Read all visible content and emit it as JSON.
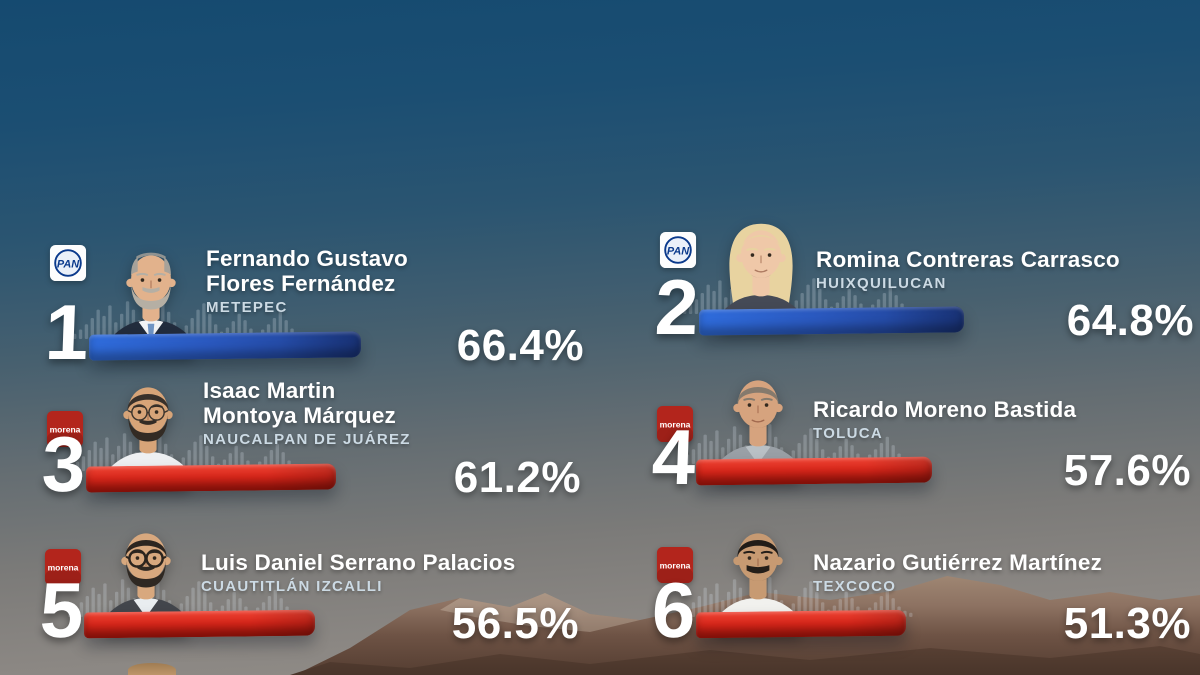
{
  "background_colors": {
    "sky_top": "#154a70",
    "sky_bottom": "#94908a",
    "mountain_light": "#a28a76",
    "mountain_dark": "#543d31"
  },
  "parties": {
    "pan": {
      "label": "PAN",
      "logo_bg": "#fdfdfd",
      "logo_text": "PAN",
      "logo_text_color": "#0b3a8c",
      "bar_color": "#2a58be"
    },
    "morena": {
      "label": "morena",
      "logo_bg": "#b3251c",
      "logo_text": "morena",
      "logo_text_color": "#ffffff",
      "bar_color": "#d6261a"
    }
  },
  "ranking": [
    {
      "rank": "1",
      "display_name": "Fernando Gustavo\nFlores Fernández",
      "municipality": "METEPEC",
      "percent": "66.4%",
      "value": 66.4,
      "party": "pan",
      "photo": {
        "skin": "#e2b28c",
        "hair": "#a7a29a",
        "hair_style": "balding",
        "beard": "full",
        "beard_color": "#b5afa4",
        "top": "#222c3d",
        "shirt": "#f2f3f5",
        "tie": "#6f94c4",
        "glasses": "none"
      }
    },
    {
      "rank": "2",
      "display_name": "Romina Contreras Carrasco",
      "municipality": "HUIXQUILUCAN",
      "percent": "64.8%",
      "value": 64.8,
      "party": "pan",
      "photo": {
        "skin": "#efc8a8",
        "hair": "#e8d3a0",
        "hair_style": "long",
        "beard": "none",
        "beard_color": "",
        "top": "#454a56",
        "shirt": "",
        "tie": "",
        "glasses": "none"
      }
    },
    {
      "rank": "3",
      "display_name": "Isaac Martin\nMontoya Márquez",
      "municipality": "NAUCALPAN DE JUÁREZ",
      "percent": "61.2%",
      "value": 61.2,
      "party": "morena",
      "photo": {
        "skin": "#d7a478",
        "hair": "#38302a",
        "hair_style": "short",
        "beard": "full",
        "beard_color": "#332b24",
        "top": "#eef0f2",
        "shirt": "",
        "tie": "",
        "glasses": "thin"
      }
    },
    {
      "rank": "4",
      "display_name": "Ricardo Moreno Bastida",
      "municipality": "TOLUCA",
      "percent": "57.6%",
      "value": 57.6,
      "party": "morena",
      "photo": {
        "skin": "#d6a37e",
        "hair": "#857a6d",
        "hair_style": "short",
        "beard": "none",
        "beard_color": "",
        "top": "#9aa0a6",
        "shirt": "#b9c0c5",
        "tie": "",
        "glasses": "none"
      }
    },
    {
      "rank": "5",
      "display_name": "Luis Daniel Serrano Palacios",
      "municipality": "CUAUTITLÁN IZCALLI",
      "percent": "56.5%",
      "value": 56.5,
      "party": "morena",
      "photo": {
        "skin": "#d8a87e",
        "hair": "#2c2520",
        "hair_style": "short",
        "beard": "full",
        "beard_color": "#2f2822",
        "top": "#43464c",
        "shirt": "#e9edf0",
        "tie": "",
        "glasses": "round"
      }
    },
    {
      "rank": "6",
      "display_name": "Nazario Gutiérrez Martínez",
      "municipality": "TEXCOCO",
      "percent": "51.3%",
      "value": 51.3,
      "party": "morena",
      "photo": {
        "skin": "#c79a72",
        "hair": "#211c18",
        "hair_style": "short",
        "beard": "mustache",
        "beard_color": "#241e19",
        "top": "#f1f1ee",
        "shirt": "",
        "tie": "",
        "glasses": "none"
      }
    }
  ],
  "chart_data": {
    "type": "bar",
    "orientation": "horizontal",
    "title": "",
    "xlabel": "",
    "ylabel": "",
    "unit": "%",
    "legend": false,
    "categories": [
      "Fernando Gustavo Flores Fernández (Metepec)",
      "Romina Contreras Carrasco (Huixquilucan)",
      "Isaac Martin Montoya Márquez (Naucalpan de Juárez)",
      "Ricardo Moreno Bastida (Toluca)",
      "Luis Daniel Serrano Palacios (Cuautitlán Izcalli)",
      "Nazario Gutiérrez Martínez (Texcoco)"
    ],
    "values": [
      66.4,
      64.8,
      61.2,
      57.6,
      56.5,
      51.3
    ],
    "bar_parties": [
      "PAN",
      "PAN",
      "MORENA",
      "MORENA",
      "MORENA",
      "MORENA"
    ],
    "bar_colors": [
      "#2a58be",
      "#2a58be",
      "#d6261a",
      "#d6261a",
      "#d6261a",
      "#d6261a"
    ],
    "xlim": [
      0,
      100
    ]
  }
}
